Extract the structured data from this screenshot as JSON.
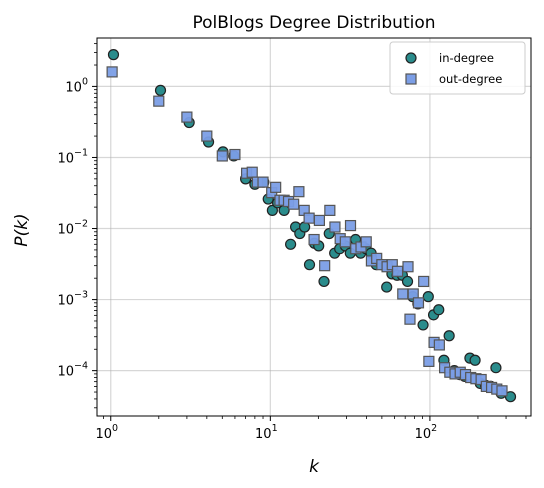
{
  "chart_data": {
    "type": "scatter",
    "title": "PolBlogs Degree Distribution",
    "xlabel": "k",
    "ylabel": "P(k)",
    "xscale": "log",
    "yscale": "log",
    "xlim": [
      0.82,
      430
    ],
    "ylim": [
      2.3e-05,
      4.8
    ],
    "x_ticks": [
      {
        "value": 1,
        "base": "10",
        "exp": "0"
      },
      {
        "value": 10,
        "base": "10",
        "exp": "1"
      },
      {
        "value": 100,
        "base": "10",
        "exp": "2"
      }
    ],
    "y_ticks": [
      {
        "value": 0.0001,
        "base": "10",
        "exp": "−4"
      },
      {
        "value": 0.001,
        "base": "10",
        "exp": "−3"
      },
      {
        "value": 0.01,
        "base": "10",
        "exp": "−2"
      },
      {
        "value": 0.1,
        "base": "10",
        "exp": "−1"
      },
      {
        "value": 1,
        "base": "10",
        "exp": "0"
      }
    ],
    "grid": true,
    "legend_position": "top-right",
    "series": [
      {
        "name": "in-degree",
        "marker": "circle",
        "color": "#2a8c8c",
        "edge": "#222222",
        "points": [
          [
            1.04,
            2.8
          ],
          [
            2.05,
            0.88
          ],
          [
            3.1,
            0.31
          ],
          [
            4.1,
            0.165
          ],
          [
            5.05,
            0.12
          ],
          [
            5.9,
            0.105
          ],
          [
            7.0,
            0.05
          ],
          [
            8.0,
            0.042
          ],
          [
            9.1,
            0.045
          ],
          [
            9.7,
            0.026
          ],
          [
            10.3,
            0.018
          ],
          [
            11.1,
            0.023
          ],
          [
            12.2,
            0.018
          ],
          [
            13.4,
            0.006
          ],
          [
            14.4,
            0.0105
          ],
          [
            15.3,
            0.0085
          ],
          [
            16.4,
            0.0105
          ],
          [
            17.6,
            0.0031
          ],
          [
            18.9,
            0.0062
          ],
          [
            20.1,
            0.0057
          ],
          [
            21.7,
            0.0018
          ],
          [
            23.4,
            0.0085
          ],
          [
            25.3,
            0.0045
          ],
          [
            27.2,
            0.0052
          ],
          [
            29.5,
            0.0057
          ],
          [
            31.7,
            0.0045
          ],
          [
            34.2,
            0.007
          ],
          [
            36.8,
            0.0045
          ],
          [
            39.7,
            0.0052
          ],
          [
            42.8,
            0.0045
          ],
          [
            46.1,
            0.0031
          ],
          [
            49.8,
            0.0031
          ],
          [
            53.6,
            0.0015
          ],
          [
            57.8,
            0.0023
          ],
          [
            62.3,
            0.0022
          ],
          [
            67.2,
            0.0022
          ],
          [
            72.4,
            0.0018
          ],
          [
            78.0,
            0.0011
          ],
          [
            84.1,
            0.00087
          ],
          [
            90.6,
            0.00044
          ],
          [
            97.7,
            0.0011
          ],
          [
            105.4,
            0.00061
          ],
          [
            113.6,
            0.00072
          ],
          [
            122.4,
            0.00014
          ],
          [
            132.0,
            0.00031
          ],
          [
            142.2,
            0.0001
          ],
          [
            153.3,
            8.8e-05
          ],
          [
            165.3,
            8.3e-05
          ],
          [
            178.1,
            0.00015
          ],
          [
            191.9,
            0.00014
          ],
          [
            206.8,
            6.6e-05
          ],
          [
            223.1,
            6.2e-05
          ],
          [
            240.5,
            6e-05
          ],
          [
            259.2,
            0.00011
          ],
          [
            279.4,
            4.8e-05
          ],
          [
            320.0,
            4.3e-05
          ]
        ]
      },
      {
        "name": "out-degree",
        "marker": "square",
        "color": "#7b9ee6",
        "edge": "#555555",
        "points": [
          [
            1.02,
            1.6
          ],
          [
            2.0,
            0.62
          ],
          [
            3.0,
            0.37
          ],
          [
            4.0,
            0.2
          ],
          [
            5.0,
            0.105
          ],
          [
            6.0,
            0.11
          ],
          [
            7.1,
            0.06
          ],
          [
            7.7,
            0.062
          ],
          [
            8.3,
            0.045
          ],
          [
            9.0,
            0.045
          ],
          [
            10.2,
            0.032
          ],
          [
            10.8,
            0.038
          ],
          [
            11.5,
            0.025
          ],
          [
            12.2,
            0.025
          ],
          [
            13.0,
            0.024
          ],
          [
            14.0,
            0.022
          ],
          [
            15.1,
            0.033
          ],
          [
            16.3,
            0.018
          ],
          [
            17.5,
            0.014
          ],
          [
            18.8,
            0.007
          ],
          [
            20.3,
            0.013
          ],
          [
            21.9,
            0.003
          ],
          [
            23.6,
            0.018
          ],
          [
            25.4,
            0.0105
          ],
          [
            27.4,
            0.0072
          ],
          [
            29.5,
            0.0065
          ],
          [
            31.8,
            0.011
          ],
          [
            34.3,
            0.0052
          ],
          [
            37.0,
            0.0055
          ],
          [
            39.9,
            0.0065
          ],
          [
            43.0,
            0.0035
          ],
          [
            46.4,
            0.0038
          ],
          [
            50.0,
            0.0031
          ],
          [
            53.9,
            0.0029
          ],
          [
            58.1,
            0.0031
          ],
          [
            62.7,
            0.0025
          ],
          [
            67.6,
            0.0012
          ],
          [
            72.9,
            0.0029
          ],
          [
            78.6,
            0.0012
          ],
          [
            84.8,
            0.0009
          ],
          [
            91.4,
            0.0018
          ],
          [
            98.5,
            0.000135
          ],
          [
            106.2,
            0.00025
          ],
          [
            114.6,
            0.00023
          ],
          [
            123.6,
            0.00011
          ],
          [
            133.3,
            9.5e-05
          ],
          [
            143.7,
            9e-05
          ],
          [
            154.9,
            9.5e-05
          ],
          [
            167.1,
            8.8e-05
          ],
          [
            180.1,
            8e-05
          ],
          [
            194.2,
            7.7e-05
          ],
          [
            209.4,
            7.5e-05
          ],
          [
            225.8,
            6e-05
          ],
          [
            243.5,
            5.8e-05
          ],
          [
            262.5,
            5.5e-05
          ],
          [
            283.0,
            5.2e-05
          ],
          [
            75.0,
            0.00053
          ]
        ]
      }
    ]
  }
}
